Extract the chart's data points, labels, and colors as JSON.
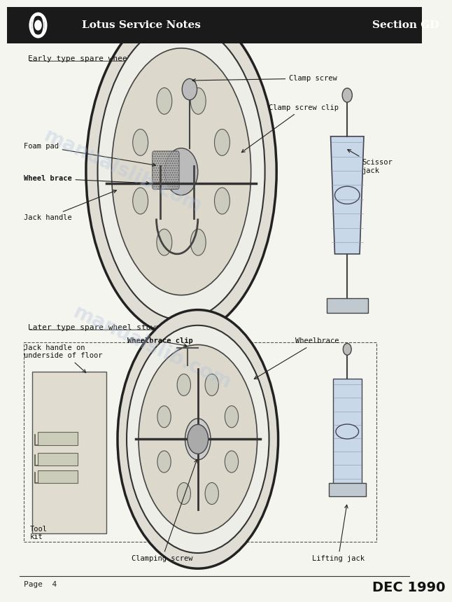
{
  "page_background": "#f5f5f0",
  "header_bg": "#1a1a1a",
  "header_text_left": "Lotus Service Notes",
  "header_text_right": "Section GD",
  "header_text_color": "#ffffff",
  "footer_text_left": "Page  4",
  "footer_text_right": "DEC 1990",
  "section1_title": "Early type spare wheel stowage",
  "section2_title": "Later type spare wheel stowage",
  "watermark_text": "manualslib.com",
  "watermark_color": "#b0c4de",
  "watermark_alpha": 0.35
}
